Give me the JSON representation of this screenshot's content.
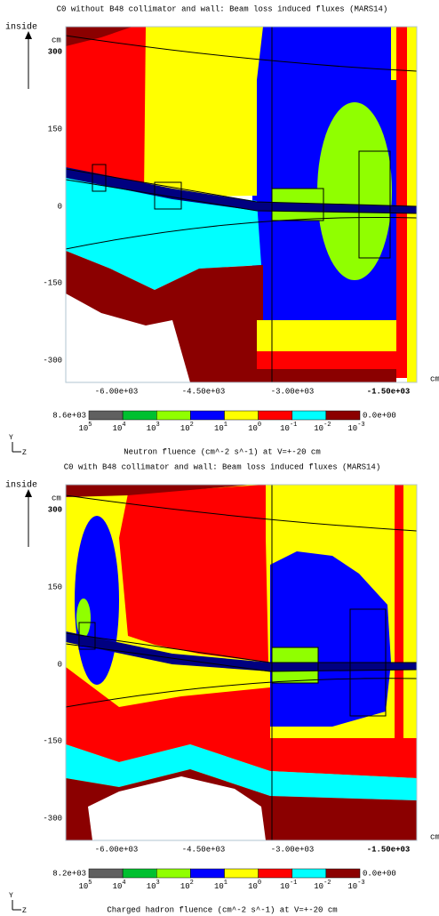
{
  "panels": [
    {
      "title": "C0 without B48 collimator and wall: Beam loss induced fluxes (MARS14)",
      "y_axis_label": "inside",
      "y_unit": "cm",
      "yticks": [
        "300",
        "150",
        "0",
        "-150",
        "-300"
      ],
      "xticks": [
        "-6.00e+03",
        "-4.50e+03",
        "-3.00e+03",
        "-1.50e+03"
      ],
      "x_unit": "cm",
      "colorbar": {
        "max_label": "8.6e+03",
        "min_label": "0.0e+00",
        "colors": [
          "#606060",
          "#00c030",
          "#90ff00",
          "#0000ff",
          "#ffff00",
          "#ff0000",
          "#00ffff",
          "#8b0000"
        ],
        "ticks": [
          {
            "base": "10",
            "exp": "5"
          },
          {
            "base": "10",
            "exp": "4"
          },
          {
            "base": "10",
            "exp": "3"
          },
          {
            "base": "10",
            "exp": "2"
          },
          {
            "base": "10",
            "exp": "1"
          },
          {
            "base": "10",
            "exp": "0"
          },
          {
            "base": "10",
            "exp": "-1"
          },
          {
            "base": "10",
            "exp": "-2"
          },
          {
            "base": "10",
            "exp": "-3"
          }
        ]
      },
      "axis_icon": {
        "y": "Y",
        "z": "Z"
      },
      "caption": "Neutron fluence (cm^-2 s^-1) at V=+-20 cm"
    },
    {
      "title": "C0 with B48 collimator and wall: Beam loss induced fluxes (MARS14)",
      "y_axis_label": "inside",
      "y_unit": "cm",
      "yticks": [
        "300",
        "150",
        "0",
        "-150",
        "-300"
      ],
      "xticks": [
        "-6.00e+03",
        "-4.50e+03",
        "-3.00e+03",
        "-1.50e+03"
      ],
      "x_unit": "cm",
      "colorbar": {
        "max_label": "8.2e+03",
        "min_label": "0.0e+00",
        "colors": [
          "#606060",
          "#00c030",
          "#90ff00",
          "#0000ff",
          "#ffff00",
          "#ff0000",
          "#00ffff",
          "#8b0000"
        ],
        "ticks": [
          {
            "base": "10",
            "exp": "5"
          },
          {
            "base": "10",
            "exp": "4"
          },
          {
            "base": "10",
            "exp": "3"
          },
          {
            "base": "10",
            "exp": "2"
          },
          {
            "base": "10",
            "exp": "1"
          },
          {
            "base": "10",
            "exp": "0"
          },
          {
            "base": "10",
            "exp": "-1"
          },
          {
            "base": "10",
            "exp": "-2"
          },
          {
            "base": "10",
            "exp": "-3"
          }
        ]
      },
      "axis_icon": {
        "y": "Y",
        "z": "Z"
      },
      "caption": "Charged hadron fluence (cm^-2 s^-1) at V=+-20 cm"
    }
  ]
}
